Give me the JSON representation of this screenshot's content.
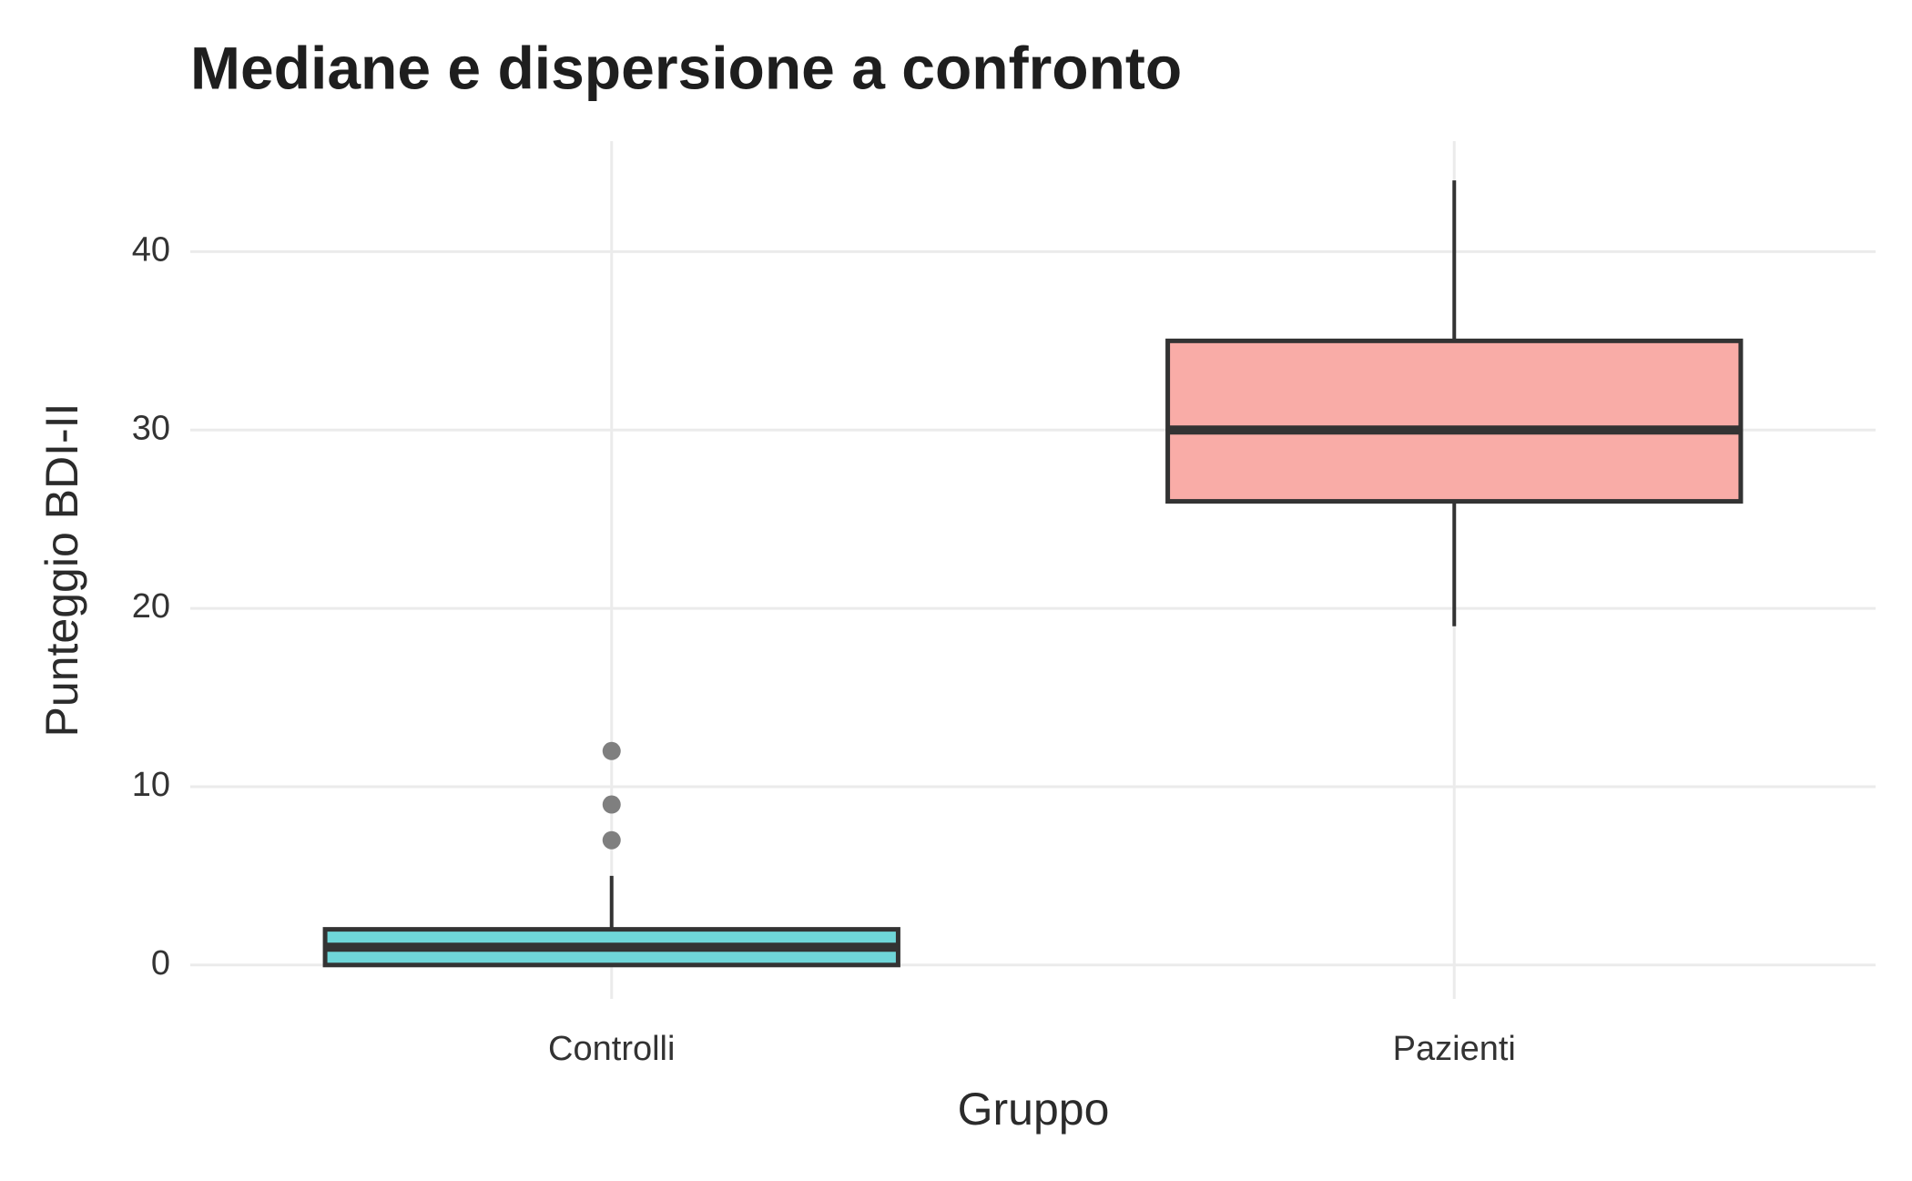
{
  "chart_data": {
    "type": "box",
    "title": "Mediane e dispersione a confronto",
    "x_label": "Gruppo",
    "y_label": "Punteggio BDI-II",
    "categories": [
      "Controlli",
      "Pazienti"
    ],
    "colors": [
      "#6fd6d8",
      "#f9aca7"
    ],
    "boxes": [
      {
        "min": 0,
        "q1": 0,
        "median": 1,
        "q3": 2,
        "max": 5,
        "outliers": [
          7,
          9,
          12
        ]
      },
      {
        "min": 19,
        "q1": 26,
        "median": 30,
        "q3": 35,
        "max": 44,
        "outliers": []
      }
    ],
    "ylim": [
      -1.9,
      46.2
    ],
    "yticks": [
      0,
      10,
      20,
      30,
      40
    ],
    "grid": true
  }
}
